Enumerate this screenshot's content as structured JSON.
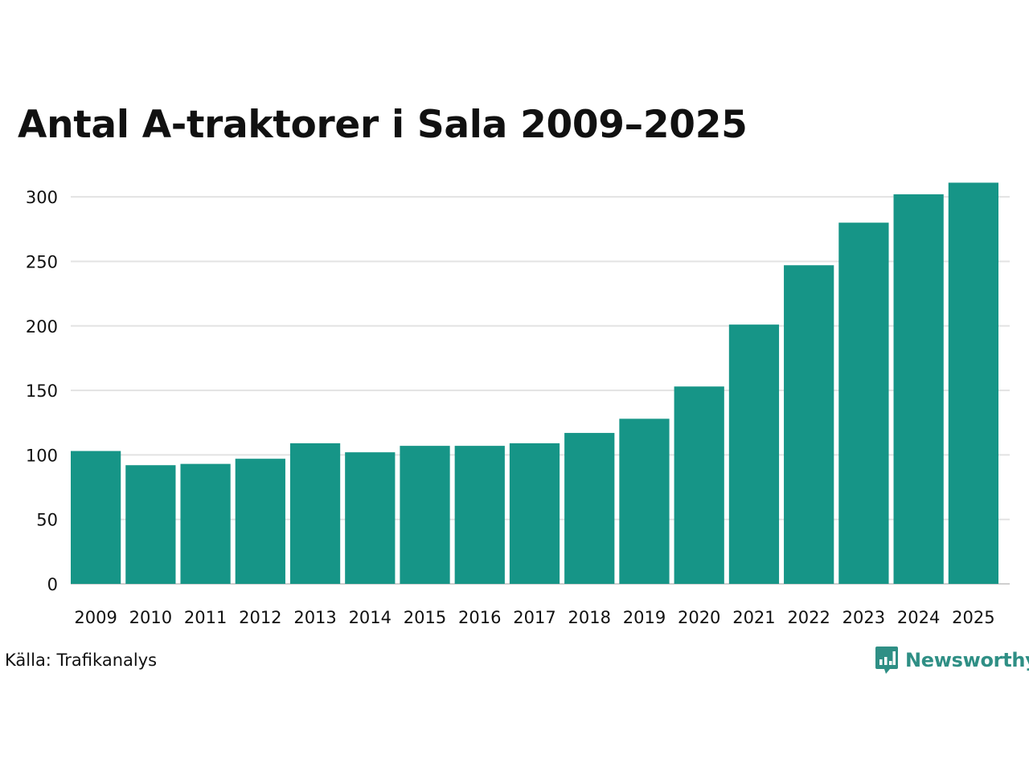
{
  "colors": {
    "bar": "#169587",
    "grid": "#e3e3e3",
    "axis": "#cfcfcf",
    "text": "#111111",
    "brand": "#2f8f85"
  },
  "source_text": "Källa: Trafikanalys",
  "brand_name": "Newsworthy",
  "brand_icon": "bar-chart-speech-bubble-icon",
  "chart_data": {
    "type": "bar",
    "title": "Antal A-traktorer i Sala 2009–2025",
    "xlabel": "",
    "ylabel": "",
    "ylim": [
      0,
      320
    ],
    "yticks": [
      0,
      50,
      100,
      150,
      200,
      250,
      300
    ],
    "grid": true,
    "categories": [
      "2009",
      "2010",
      "2011",
      "2012",
      "2013",
      "2014",
      "2015",
      "2016",
      "2017",
      "2018",
      "2019",
      "2020",
      "2021",
      "2022",
      "2023",
      "2024",
      "2025"
    ],
    "values": [
      103,
      92,
      93,
      97,
      109,
      102,
      107,
      107,
      109,
      117,
      128,
      153,
      201,
      247,
      280,
      302,
      311
    ]
  }
}
